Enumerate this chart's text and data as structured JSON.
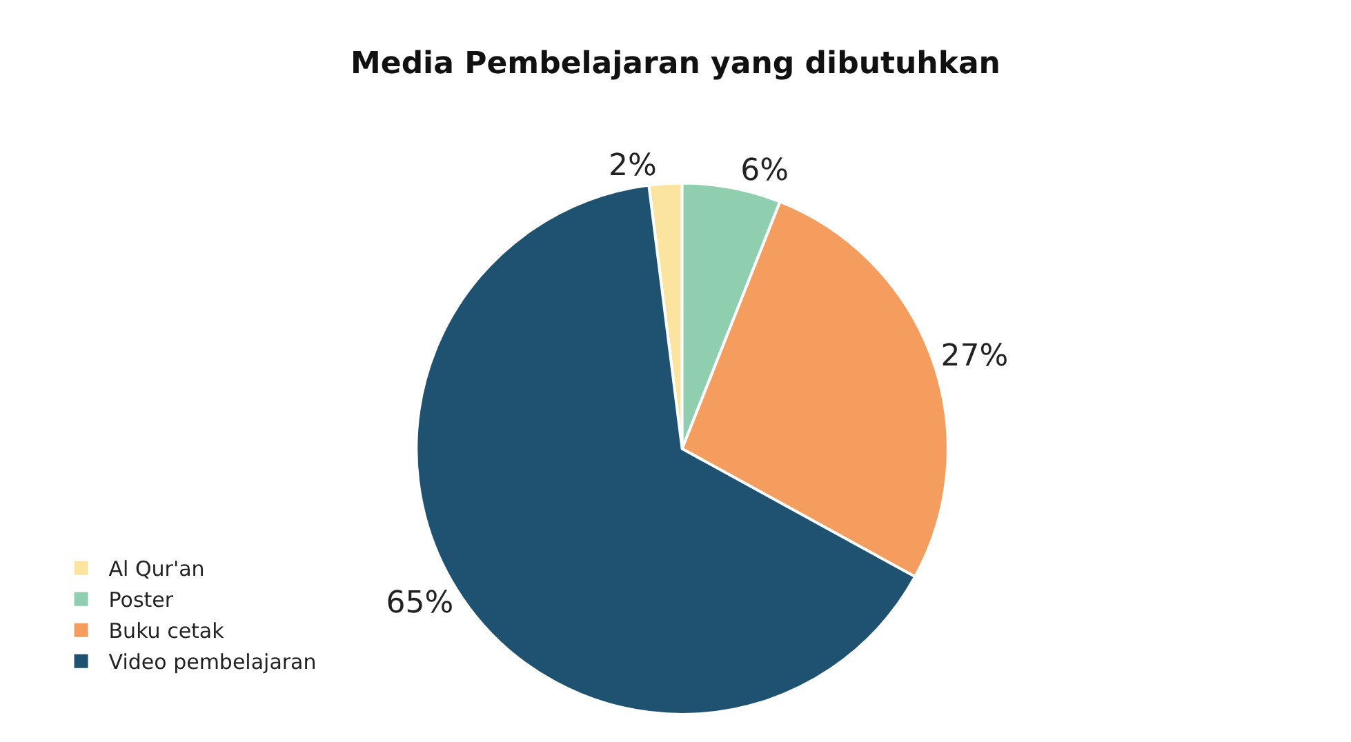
{
  "chart_data": {
    "type": "pie",
    "title": "Media Pembelajaran yang dibutuhkan",
    "categories": [
      "Al Qur'an",
      "Poster",
      "Buku cetak",
      "Video pembelajaran"
    ],
    "values": [
      2,
      6,
      27,
      65
    ],
    "value_labels": [
      "2%",
      "6%",
      "27%",
      "65%"
    ],
    "colors": [
      "#fbe3a0",
      "#8fcfb0",
      "#f59d5e",
      "#1f5170"
    ],
    "legend": "bottom left"
  }
}
